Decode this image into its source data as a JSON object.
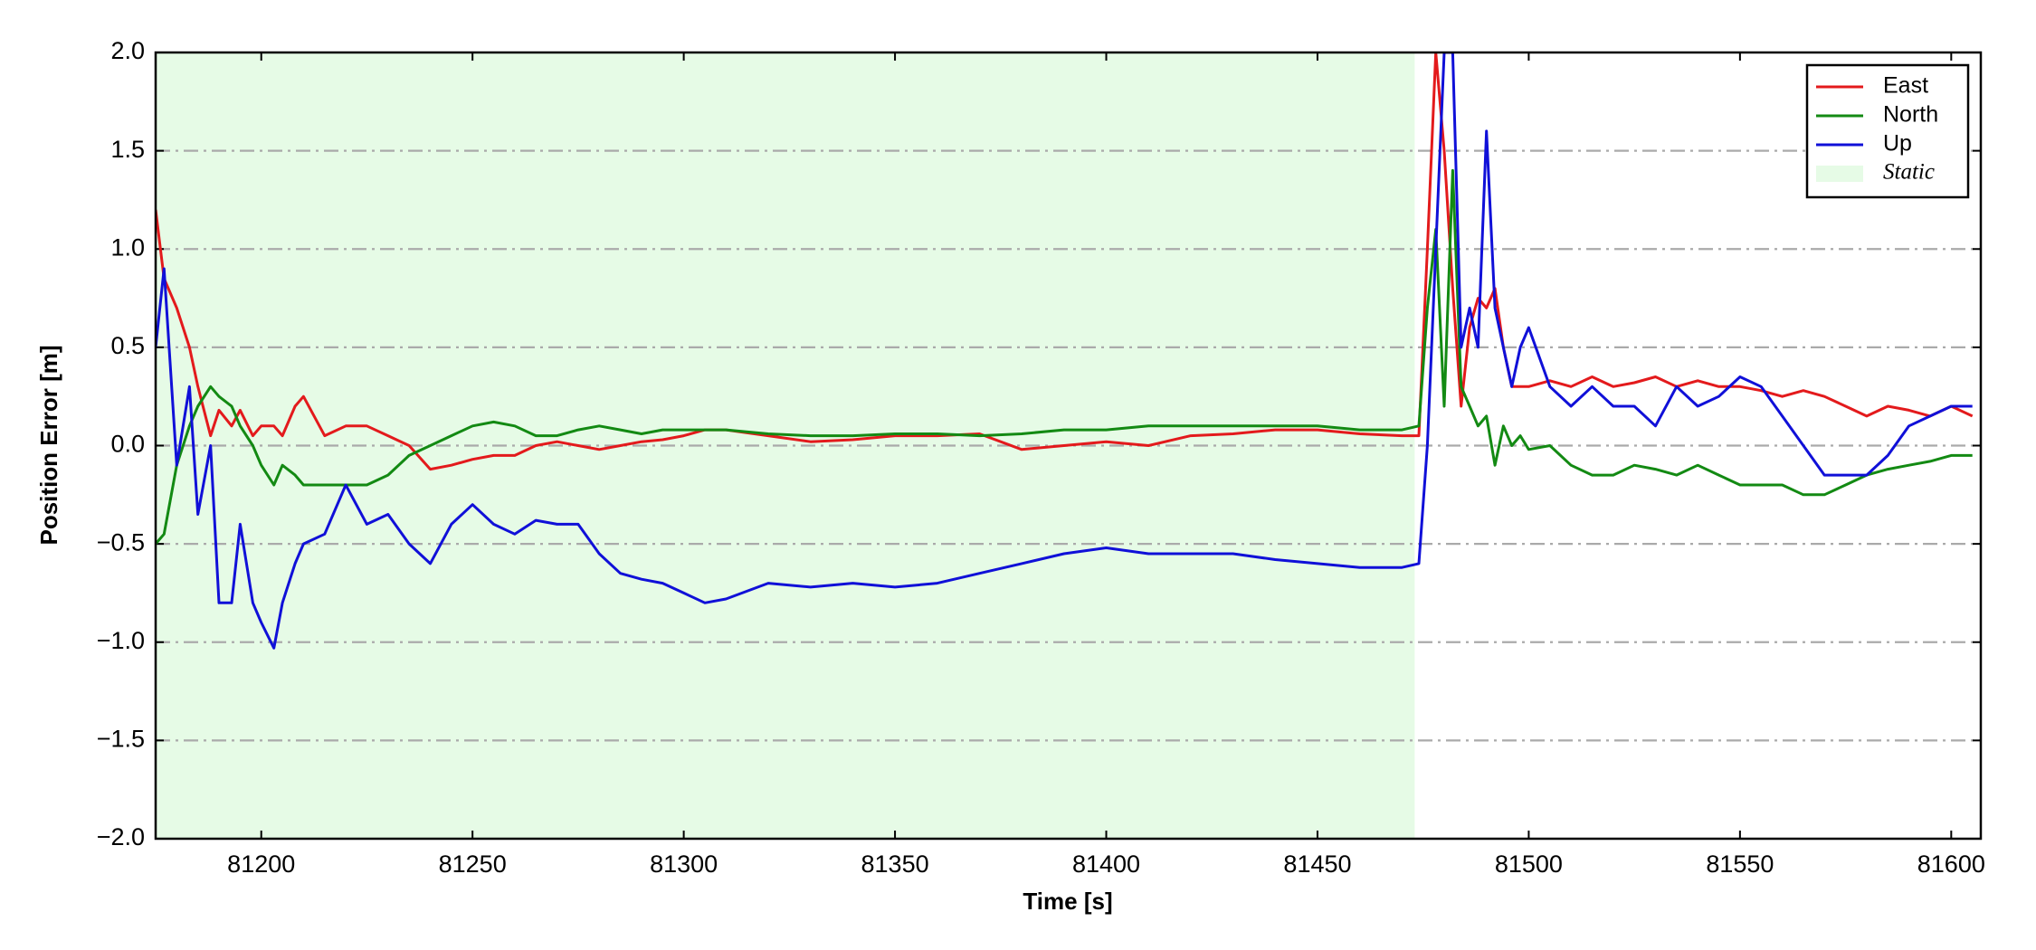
{
  "chart_data": {
    "type": "line",
    "xlabel": "Time [s]",
    "ylabel": "Position Error [m]",
    "x": [
      81175,
      81177,
      81180,
      81183,
      81185,
      81188,
      81190,
      81193,
      81195,
      81198,
      81200,
      81203,
      81205,
      81208,
      81210,
      81215,
      81220,
      81225,
      81230,
      81235,
      81240,
      81245,
      81250,
      81255,
      81260,
      81265,
      81270,
      81275,
      81280,
      81285,
      81290,
      81295,
      81300,
      81305,
      81310,
      81320,
      81330,
      81340,
      81350,
      81360,
      81370,
      81380,
      81390,
      81400,
      81410,
      81420,
      81430,
      81440,
      81450,
      81460,
      81470,
      81474,
      81476,
      81478,
      81480,
      81482,
      81484,
      81486,
      81488,
      81490,
      81492,
      81494,
      81496,
      81498,
      81500,
      81505,
      81510,
      81515,
      81520,
      81525,
      81530,
      81535,
      81540,
      81545,
      81550,
      81555,
      81560,
      81565,
      81570,
      81575,
      81580,
      81585,
      81590,
      81595,
      81600,
      81605
    ],
    "series": [
      {
        "name": "East",
        "color": "#e31a1c",
        "values": [
          1.2,
          0.85,
          0.7,
          0.5,
          0.3,
          0.05,
          0.18,
          0.1,
          0.18,
          0.05,
          0.1,
          0.1,
          0.05,
          0.2,
          0.25,
          0.05,
          0.1,
          0.1,
          0.05,
          0.0,
          -0.12,
          -0.1,
          -0.07,
          -0.05,
          -0.05,
          0.0,
          0.02,
          0.0,
          -0.02,
          0.0,
          0.02,
          0.03,
          0.05,
          0.08,
          0.08,
          0.05,
          0.02,
          0.03,
          0.05,
          0.05,
          0.06,
          -0.02,
          0.0,
          0.02,
          0.0,
          0.05,
          0.06,
          0.08,
          0.08,
          0.06,
          0.05,
          0.05,
          1.0,
          2.0,
          1.5,
          0.8,
          0.2,
          0.6,
          0.75,
          0.7,
          0.8,
          0.5,
          0.3,
          0.3,
          0.3,
          0.33,
          0.3,
          0.35,
          0.3,
          0.32,
          0.35,
          0.3,
          0.33,
          0.3,
          0.3,
          0.28,
          0.25,
          0.28,
          0.25,
          0.2,
          0.15,
          0.2,
          0.18,
          0.15,
          0.2,
          0.15
        ]
      },
      {
        "name": "North",
        "color": "#138a13",
        "values": [
          -0.5,
          -0.45,
          -0.1,
          0.1,
          0.2,
          0.3,
          0.25,
          0.2,
          0.1,
          0.0,
          -0.1,
          -0.2,
          -0.1,
          -0.15,
          -0.2,
          -0.2,
          -0.2,
          -0.2,
          -0.15,
          -0.05,
          0.0,
          0.05,
          0.1,
          0.12,
          0.1,
          0.05,
          0.05,
          0.08,
          0.1,
          0.08,
          0.06,
          0.08,
          0.08,
          0.08,
          0.08,
          0.06,
          0.05,
          0.05,
          0.06,
          0.06,
          0.05,
          0.06,
          0.08,
          0.08,
          0.1,
          0.1,
          0.1,
          0.1,
          0.1,
          0.08,
          0.08,
          0.1,
          0.7,
          1.1,
          0.2,
          1.4,
          0.3,
          0.2,
          0.1,
          0.15,
          -0.1,
          0.1,
          0.0,
          0.05,
          -0.02,
          0.0,
          -0.1,
          -0.15,
          -0.15,
          -0.1,
          -0.12,
          -0.15,
          -0.1,
          -0.15,
          -0.2,
          -0.2,
          -0.2,
          -0.25,
          -0.25,
          -0.2,
          -0.15,
          -0.12,
          -0.1,
          -0.08,
          -0.05,
          -0.05
        ]
      },
      {
        "name": "Up",
        "color": "#1010d8",
        "values": [
          0.5,
          0.9,
          -0.1,
          0.3,
          -0.35,
          0.0,
          -0.8,
          -0.8,
          -0.4,
          -0.8,
          -0.9,
          -1.03,
          -0.8,
          -0.6,
          -0.5,
          -0.45,
          -0.2,
          -0.4,
          -0.35,
          -0.5,
          -0.6,
          -0.4,
          -0.3,
          -0.4,
          -0.45,
          -0.38,
          -0.4,
          -0.4,
          -0.55,
          -0.65,
          -0.68,
          -0.7,
          -0.75,
          -0.8,
          -0.78,
          -0.7,
          -0.72,
          -0.7,
          -0.72,
          -0.7,
          -0.65,
          -0.6,
          -0.55,
          -0.52,
          -0.55,
          -0.55,
          -0.55,
          -0.58,
          -0.6,
          -0.62,
          -0.62,
          -0.6,
          0.0,
          1.0,
          2.0,
          2.0,
          0.5,
          0.7,
          0.5,
          1.6,
          0.7,
          0.5,
          0.3,
          0.5,
          0.6,
          0.3,
          0.2,
          0.3,
          0.2,
          0.2,
          0.1,
          0.3,
          0.2,
          0.25,
          0.35,
          0.3,
          0.15,
          0.0,
          -0.15,
          -0.15,
          -0.15,
          -0.05,
          0.1,
          0.15,
          0.2,
          0.2
        ]
      }
    ],
    "shaded_region": {
      "label": "Static",
      "x": [
        81175,
        81473
      ],
      "color": "#e6fbe6"
    },
    "xlim": [
      81175,
      81607
    ],
    "ylim": [
      -2,
      2
    ],
    "xticks": [
      81200,
      81250,
      81300,
      81350,
      81400,
      81450,
      81500,
      81550,
      81600
    ],
    "yticks": [
      {
        "value": -2,
        "label": "−2.0"
      },
      {
        "value": -1.5,
        "label": "−1.5"
      },
      {
        "value": -1,
        "label": "−1.0"
      },
      {
        "value": -0.5,
        "label": "−0.5"
      },
      {
        "value": 0,
        "label": "0.0"
      },
      0.5,
      {
        "value": 1,
        "label": "1.0"
      },
      1.5,
      {
        "value": 2,
        "label": "2.0"
      }
    ],
    "grid": true,
    "legend": "upper right"
  }
}
